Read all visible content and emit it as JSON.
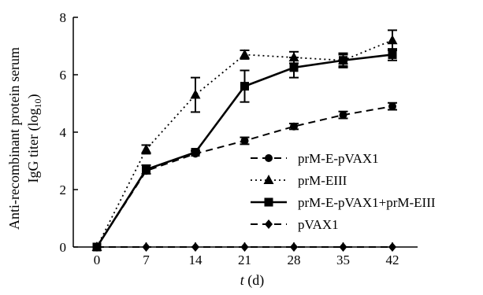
{
  "chart_data": {
    "type": "line",
    "xlabel_var": "t",
    "xlabel_unit": " (d)",
    "ylabel_line1": "Anti-recombinant protein serum",
    "ylabel_line2_pre": "IgG titer (log",
    "ylabel_line2_sub": "10",
    "ylabel_line2_post": ")",
    "x": [
      0,
      7,
      14,
      21,
      28,
      35,
      42
    ],
    "xticks": [
      "0",
      "7",
      "14",
      "21",
      "28",
      "35",
      "42"
    ],
    "yticks": [
      "0",
      "2",
      "4",
      "6",
      "8"
    ],
    "xlim": [
      0,
      42
    ],
    "ylim": [
      0,
      8
    ],
    "grid": false,
    "legend_position": "lower-right",
    "series": [
      {
        "name": "prM-E-pVAX1",
        "marker": "circle",
        "line": "dash",
        "values": [
          0,
          2.65,
          3.25,
          3.7,
          4.2,
          4.6,
          4.9
        ],
        "errors": [
          0,
          0,
          0,
          0.12,
          0.1,
          0.12,
          0.12
        ]
      },
      {
        "name": "prM-EIII",
        "marker": "triangle",
        "line": "dot",
        "values": [
          0,
          3.4,
          5.3,
          6.7,
          6.6,
          6.5,
          7.2
        ],
        "errors": [
          0,
          0.15,
          0.6,
          0.15,
          0.2,
          0.2,
          0.35
        ]
      },
      {
        "name": "prM-E-pVAX1+prM-EIII",
        "marker": "square",
        "line": "solid",
        "values": [
          0,
          2.7,
          3.3,
          5.6,
          6.25,
          6.5,
          6.7
        ],
        "errors": [
          0,
          0.15,
          0.05,
          0.55,
          0.35,
          0.25,
          0.2
        ]
      },
      {
        "name": "pVAX1",
        "marker": "diamond",
        "line": "dash",
        "values": [
          0,
          0,
          0,
          0,
          0,
          0,
          0
        ],
        "errors": [
          0,
          0,
          0,
          0,
          0,
          0,
          0
        ]
      }
    ]
  }
}
